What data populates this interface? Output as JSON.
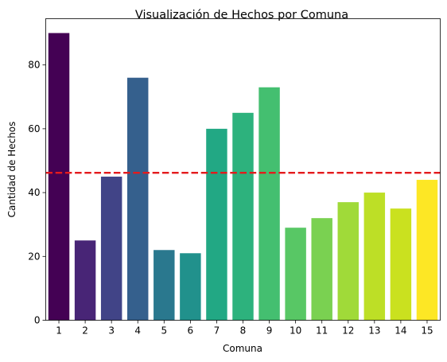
{
  "chart_data": {
    "type": "bar",
    "title": "Visualización de Hechos por Comuna",
    "xlabel": "Comuna",
    "ylabel": "Cantidad de Hechos",
    "categories": [
      "1",
      "2",
      "3",
      "4",
      "5",
      "6",
      "7",
      "8",
      "9",
      "10",
      "11",
      "12",
      "13",
      "14",
      "15"
    ],
    "values": [
      90,
      25,
      45,
      76,
      22,
      21,
      60,
      65,
      73,
      29,
      32,
      37,
      40,
      35,
      44
    ],
    "colors": [
      "#440154",
      "#482576",
      "#414487",
      "#35608d",
      "#2a788e",
      "#21918c",
      "#22a884",
      "#2db27d",
      "#44bf70",
      "#58c765",
      "#7ad151",
      "#a0da39",
      "#bddf26",
      "#cae11f",
      "#fde725"
    ],
    "yticks": [
      0,
      20,
      40,
      60,
      80
    ],
    "ylim": [
      0,
      94.5
    ],
    "reference_line": {
      "value": 46.2,
      "color": "#e41a1c",
      "style": "dashed"
    },
    "grid": false
  }
}
